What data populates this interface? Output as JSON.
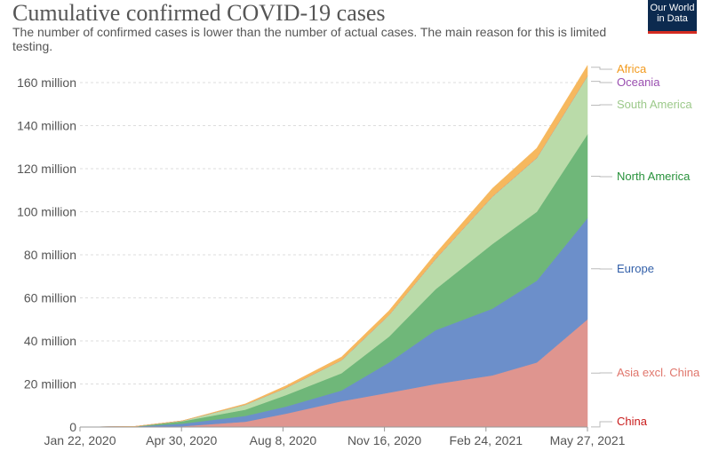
{
  "title": "Cumulative confirmed COVID-19 cases",
  "subtitle": "The number of confirmed cases is lower than the number of actual cases. The main reason for this is limited testing.",
  "logo": "Our World in Data",
  "chart_data": {
    "type": "area",
    "stacked": true,
    "x_ticks": [
      "Jan 22, 2020",
      "Apr 30, 2020",
      "Aug 8, 2020",
      "Nov 16, 2020",
      "Feb 24, 2021",
      "May 27, 2021"
    ],
    "y_ticks": [
      "0",
      "20 million",
      "40 million",
      "60 million",
      "80 million",
      "100 million",
      "120 million",
      "140 million",
      "160 million"
    ],
    "ylim": [
      0,
      170
    ],
    "y_unit": "million",
    "grid": "horizontal dashed",
    "legend": "right (labels at series ends)",
    "x": [
      "2020-01-22",
      "2020-03-15",
      "2020-04-30",
      "2020-06-30",
      "2020-08-08",
      "2020-10-01",
      "2020-11-16",
      "2020-12-31",
      "2021-02-24",
      "2021-04-08",
      "2021-05-27"
    ],
    "series": [
      {
        "name": "China",
        "color": "#e0938f",
        "label_color": "#c91d1d",
        "values": [
          0.0005,
          0.08,
          0.084,
          0.085,
          0.089,
          0.091,
          0.092,
          0.096,
          0.1,
          0.1,
          0.1
        ]
      },
      {
        "name": "Asia excl. China",
        "color": "#df958f",
        "label_color": "#e0766c",
        "values": [
          0,
          0.05,
          0.3,
          2.4,
          6.1,
          11.9,
          15.9,
          19.9,
          23.9,
          29.9,
          49.9
        ]
      },
      {
        "name": "Europe",
        "color": "#6c8fca",
        "label_color": "#3360a9",
        "values": [
          0,
          0.1,
          1.2,
          2.7,
          3.3,
          5,
          14,
          25,
          31,
          38,
          47
        ]
      },
      {
        "name": "North America",
        "color": "#6fb779",
        "label_color": "#29923c",
        "values": [
          0,
          0.05,
          1.1,
          2.9,
          5.3,
          8,
          12,
          19,
          30,
          32,
          39
        ]
      },
      {
        "name": "South America",
        "color": "#badba9",
        "label_color": "#9cc98a",
        "values": [
          0,
          0.002,
          0.2,
          2.3,
          3.3,
          6,
          10,
          14,
          22,
          25,
          27
        ]
      },
      {
        "name": "Oceania",
        "color": "#a361b8",
        "label_color": "#9a4fb0",
        "values": [
          0,
          0.0005,
          0.008,
          0.01,
          0.03,
          0.035,
          0.04,
          0.045,
          0.05,
          0.055,
          0.06
        ]
      },
      {
        "name": "Africa",
        "color": "#f6b85e",
        "label_color": "#f29a1d",
        "values": [
          0,
          0.001,
          0.04,
          0.4,
          1.0,
          1.5,
          2.0,
          2.5,
          3.8,
          4.5,
          4.9
        ]
      }
    ]
  }
}
